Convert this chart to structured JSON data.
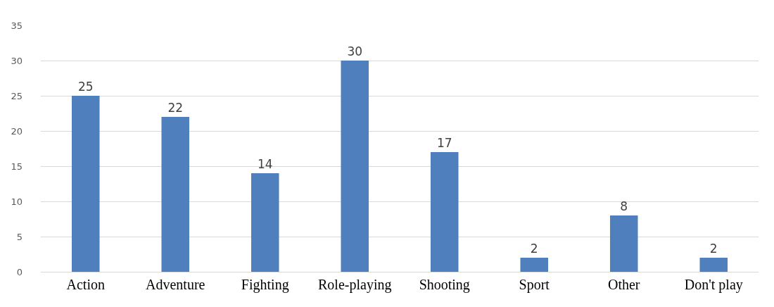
{
  "chart_data": {
    "type": "bar",
    "categories": [
      "Action",
      "Adventure",
      "Fighting",
      "Role-playing",
      "Shooting",
      "Sport",
      "Other",
      "Don't play"
    ],
    "values": [
      25,
      22,
      14,
      30,
      17,
      2,
      8,
      2
    ],
    "color": "#4f7fbd",
    "ylim": [
      0,
      35
    ],
    "yticks": [
      0,
      5,
      10,
      15,
      20,
      25,
      30,
      35
    ],
    "grid": "y",
    "data_labels": true
  }
}
